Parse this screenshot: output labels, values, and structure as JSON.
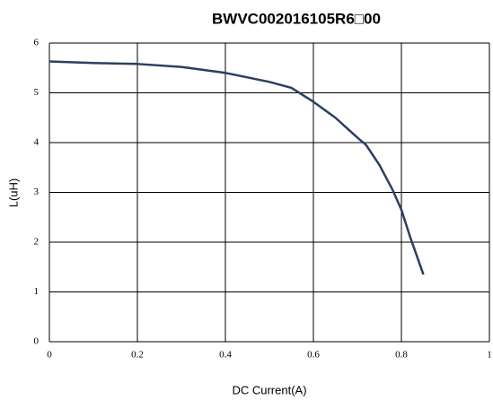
{
  "chart_data": {
    "type": "line",
    "title": "BWVC002016105R6□00",
    "x_label": "DC Current(A)",
    "y_label": "L(uH)",
    "x": [
      0,
      0.1,
      0.2,
      0.3,
      0.4,
      0.5,
      0.55,
      0.6,
      0.65,
      0.7,
      0.72,
      0.75,
      0.78,
      0.8,
      0.82,
      0.85
    ],
    "series": [
      {
        "name": "L",
        "color": "#2b3f5f",
        "values": [
          5.63,
          5.6,
          5.58,
          5.52,
          5.4,
          5.22,
          5.1,
          4.82,
          4.5,
          4.1,
          3.95,
          3.55,
          3.05,
          2.65,
          2.1,
          1.35
        ]
      }
    ],
    "xlim": [
      0,
      1
    ],
    "ylim": [
      0,
      6
    ],
    "xticks": [
      0,
      0.2,
      0.4,
      0.6,
      0.8,
      1
    ],
    "yticks": [
      0,
      1,
      2,
      3,
      4,
      5,
      6
    ],
    "grid": true
  }
}
